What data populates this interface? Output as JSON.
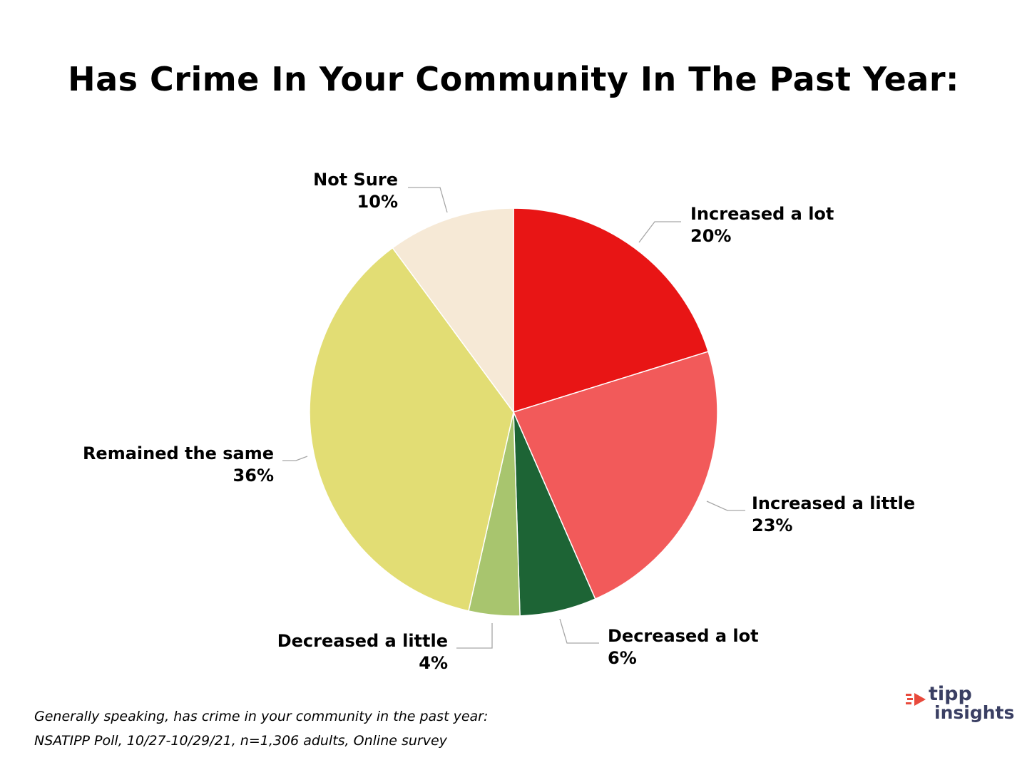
{
  "chart_data": {
    "type": "pie",
    "title": "Has Crime In Your Community In The Past Year:",
    "slices": [
      {
        "label": "Increased a lot",
        "value": 20,
        "value_label": "20%",
        "color": "#e81515"
      },
      {
        "label": "Increased a little",
        "value": 23,
        "value_label": "23%",
        "color": "#f25a5a"
      },
      {
        "label": "Decreased a lot",
        "value": 6,
        "value_label": "6%",
        "color": "#1d6435"
      },
      {
        "label": "Decreased a little",
        "value": 4,
        "value_label": "4%",
        "color": "#a8c56e"
      },
      {
        "label": "Remained the same",
        "value": 36,
        "value_label": "36%",
        "color": "#e2dd74"
      },
      {
        "label": "Not Sure",
        "value": 10,
        "value_label": "10%",
        "color": "#f6e9d6"
      }
    ]
  },
  "footnote": {
    "question": "Generally speaking, has crime in your community in the past year:",
    "source": "NSATIPP Poll, 10/27-10/29/21, n=1,306 adults, Online survey"
  },
  "logo": {
    "line1": "tipp",
    "line2": "insights",
    "accent_color": "#e84a3c",
    "text_color": "#3a3f63"
  }
}
